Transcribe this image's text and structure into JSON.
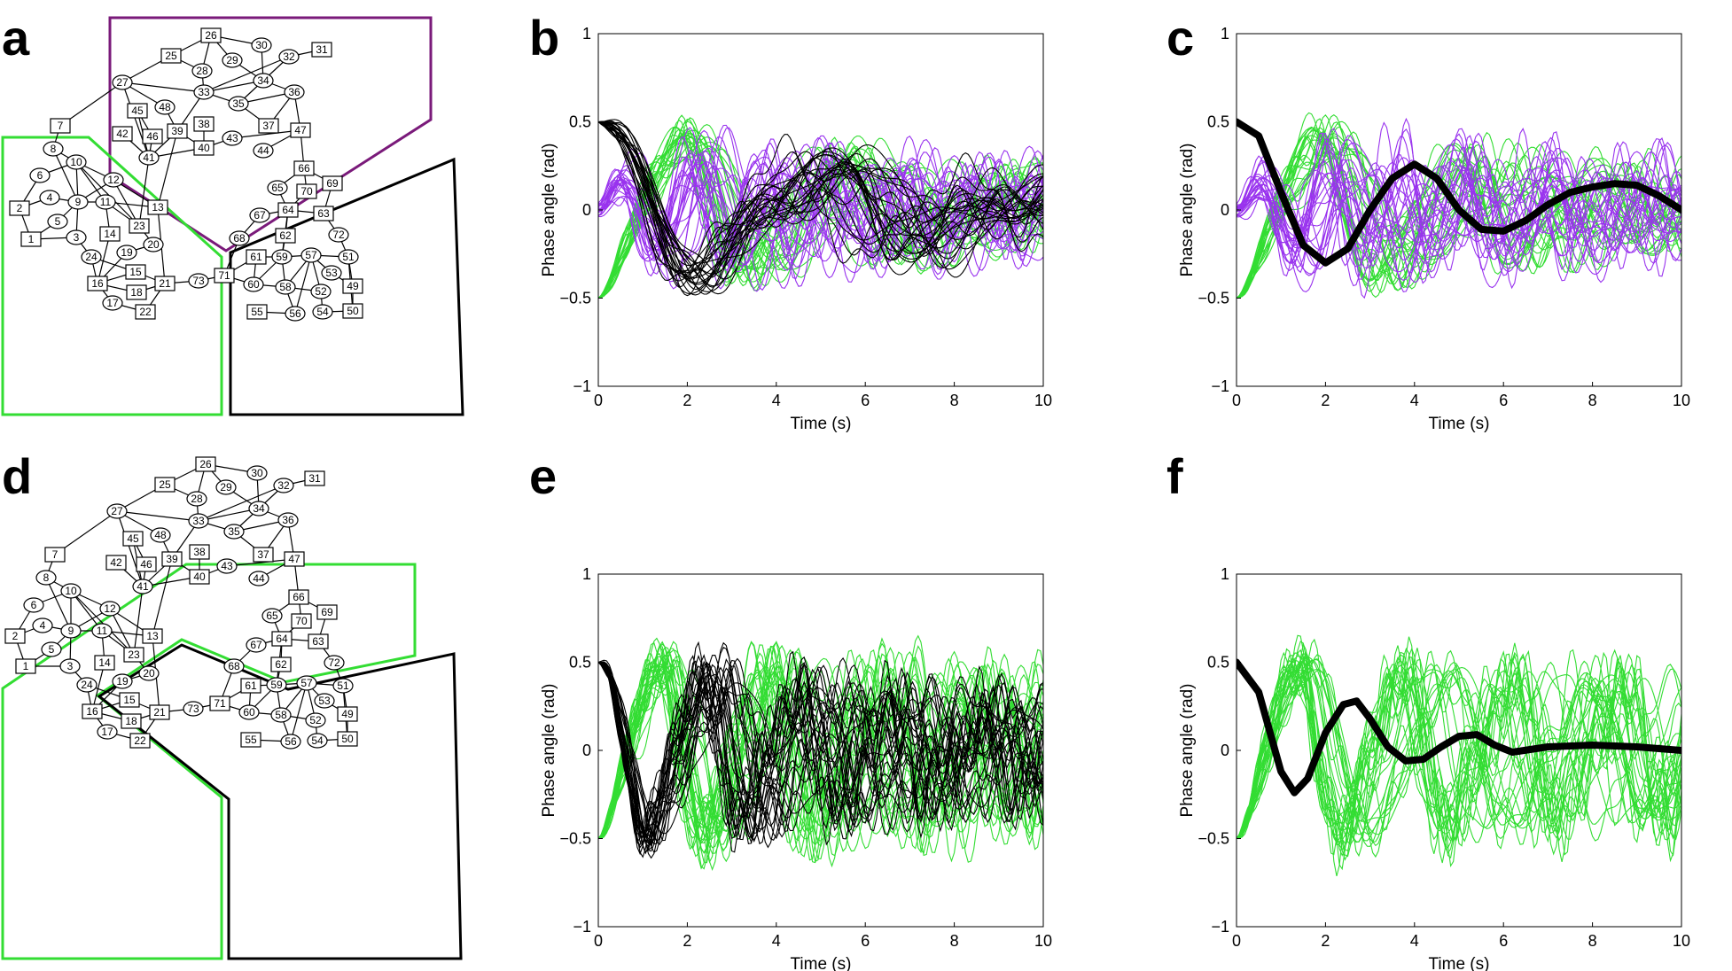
{
  "panel_labels": [
    "a",
    "b",
    "c",
    "d",
    "e",
    "f"
  ],
  "colors": {
    "group1": "#33dd33",
    "group2": "#9933ee",
    "group3": "#000000",
    "region_a_purple": "#7a1a7a"
  },
  "network": {
    "nodes": [
      {
        "id": "1",
        "shape": "square"
      },
      {
        "id": "2",
        "shape": "square"
      },
      {
        "id": "3",
        "shape": "circle"
      },
      {
        "id": "4",
        "shape": "circle"
      },
      {
        "id": "5",
        "shape": "circle"
      },
      {
        "id": "6",
        "shape": "circle"
      },
      {
        "id": "7",
        "shape": "square"
      },
      {
        "id": "8",
        "shape": "circle"
      },
      {
        "id": "9",
        "shape": "circle"
      },
      {
        "id": "10",
        "shape": "circle"
      },
      {
        "id": "11",
        "shape": "circle"
      },
      {
        "id": "12",
        "shape": "circle"
      },
      {
        "id": "13",
        "shape": "square"
      },
      {
        "id": "14",
        "shape": "square"
      },
      {
        "id": "15",
        "shape": "square"
      },
      {
        "id": "16",
        "shape": "square"
      },
      {
        "id": "17",
        "shape": "circle"
      },
      {
        "id": "18",
        "shape": "square"
      },
      {
        "id": "19",
        "shape": "circle"
      },
      {
        "id": "20",
        "shape": "circle"
      },
      {
        "id": "21",
        "shape": "square"
      },
      {
        "id": "22",
        "shape": "square"
      },
      {
        "id": "23",
        "shape": "square"
      },
      {
        "id": "24",
        "shape": "circle"
      },
      {
        "id": "25",
        "shape": "square"
      },
      {
        "id": "26",
        "shape": "square"
      },
      {
        "id": "27",
        "shape": "circle"
      },
      {
        "id": "28",
        "shape": "circle"
      },
      {
        "id": "29",
        "shape": "circle"
      },
      {
        "id": "30",
        "shape": "circle"
      },
      {
        "id": "31",
        "shape": "square"
      },
      {
        "id": "32",
        "shape": "circle"
      },
      {
        "id": "33",
        "shape": "circle"
      },
      {
        "id": "34",
        "shape": "circle"
      },
      {
        "id": "35",
        "shape": "circle"
      },
      {
        "id": "36",
        "shape": "circle"
      },
      {
        "id": "37",
        "shape": "square"
      },
      {
        "id": "38",
        "shape": "square"
      },
      {
        "id": "39",
        "shape": "square"
      },
      {
        "id": "40",
        "shape": "square"
      },
      {
        "id": "41",
        "shape": "circle"
      },
      {
        "id": "42",
        "shape": "square"
      },
      {
        "id": "43",
        "shape": "circle"
      },
      {
        "id": "44",
        "shape": "circle"
      },
      {
        "id": "45",
        "shape": "square"
      },
      {
        "id": "46",
        "shape": "square"
      },
      {
        "id": "47",
        "shape": "square"
      },
      {
        "id": "48",
        "shape": "circle"
      },
      {
        "id": "49",
        "shape": "square"
      },
      {
        "id": "50",
        "shape": "square"
      },
      {
        "id": "51",
        "shape": "circle"
      },
      {
        "id": "52",
        "shape": "circle"
      },
      {
        "id": "53",
        "shape": "circle"
      },
      {
        "id": "54",
        "shape": "circle"
      },
      {
        "id": "55",
        "shape": "square"
      },
      {
        "id": "56",
        "shape": "circle"
      },
      {
        "id": "57",
        "shape": "circle"
      },
      {
        "id": "58",
        "shape": "circle"
      },
      {
        "id": "59",
        "shape": "circle"
      },
      {
        "id": "60",
        "shape": "circle"
      },
      {
        "id": "61",
        "shape": "square"
      },
      {
        "id": "62",
        "shape": "square"
      },
      {
        "id": "63",
        "shape": "square"
      },
      {
        "id": "64",
        "shape": "square"
      },
      {
        "id": "65",
        "shape": "circle"
      },
      {
        "id": "66",
        "shape": "square"
      },
      {
        "id": "67",
        "shape": "circle"
      },
      {
        "id": "68",
        "shape": "circle"
      },
      {
        "id": "69",
        "shape": "square"
      },
      {
        "id": "70",
        "shape": "square"
      },
      {
        "id": "71",
        "shape": "square"
      },
      {
        "id": "72",
        "shape": "circle"
      },
      {
        "id": "73",
        "shape": "circle"
      }
    ],
    "edges": [
      [
        "2",
        "1"
      ],
      [
        "2",
        "4"
      ],
      [
        "2",
        "6"
      ],
      [
        "1",
        "3"
      ],
      [
        "1",
        "5"
      ],
      [
        "4",
        "9"
      ],
      [
        "5",
        "9"
      ],
      [
        "6",
        "10"
      ],
      [
        "8",
        "10"
      ],
      [
        "8",
        "7"
      ],
      [
        "8",
        "9"
      ],
      [
        "10",
        "9"
      ],
      [
        "10",
        "12"
      ],
      [
        "10",
        "11"
      ],
      [
        "10",
        "23"
      ],
      [
        "9",
        "11"
      ],
      [
        "9",
        "12"
      ],
      [
        "9",
        "3"
      ],
      [
        "12",
        "13"
      ],
      [
        "12",
        "23"
      ],
      [
        "11",
        "23"
      ],
      [
        "11",
        "14"
      ],
      [
        "11",
        "13"
      ],
      [
        "3",
        "24"
      ],
      [
        "24",
        "15"
      ],
      [
        "24",
        "16"
      ],
      [
        "14",
        "16"
      ],
      [
        "19",
        "16"
      ],
      [
        "19",
        "20"
      ],
      [
        "20",
        "23"
      ],
      [
        "16",
        "15"
      ],
      [
        "16",
        "18"
      ],
      [
        "16",
        "17"
      ],
      [
        "17",
        "22"
      ],
      [
        "18",
        "21"
      ],
      [
        "22",
        "21"
      ],
      [
        "15",
        "21"
      ],
      [
        "21",
        "13"
      ],
      [
        "21",
        "73"
      ],
      [
        "73",
        "71"
      ],
      [
        "23",
        "41"
      ],
      [
        "13",
        "39"
      ],
      [
        "7",
        "27"
      ],
      [
        "27",
        "25"
      ],
      [
        "27",
        "33"
      ],
      [
        "27",
        "41"
      ],
      [
        "27",
        "48"
      ],
      [
        "25",
        "28"
      ],
      [
        "25",
        "26"
      ],
      [
        "26",
        "28"
      ],
      [
        "26",
        "30"
      ],
      [
        "28",
        "33"
      ],
      [
        "29",
        "26"
      ],
      [
        "29",
        "34"
      ],
      [
        "30",
        "34"
      ],
      [
        "31",
        "32"
      ],
      [
        "32",
        "34"
      ],
      [
        "32",
        "33"
      ],
      [
        "33",
        "34"
      ],
      [
        "33",
        "35"
      ],
      [
        "34",
        "35"
      ],
      [
        "34",
        "36"
      ],
      [
        "35",
        "36"
      ],
      [
        "35",
        "37"
      ],
      [
        "36",
        "37"
      ],
      [
        "36",
        "47"
      ],
      [
        "33",
        "39"
      ],
      [
        "39",
        "48"
      ],
      [
        "39",
        "41"
      ],
      [
        "45",
        "46"
      ],
      [
        "45",
        "41"
      ],
      [
        "42",
        "41"
      ],
      [
        "46",
        "41"
      ],
      [
        "41",
        "40"
      ],
      [
        "38",
        "40"
      ],
      [
        "39",
        "40"
      ],
      [
        "40",
        "43"
      ],
      [
        "43",
        "47"
      ],
      [
        "44",
        "47"
      ],
      [
        "47",
        "66"
      ],
      [
        "66",
        "65"
      ],
      [
        "66",
        "70"
      ],
      [
        "66",
        "69"
      ],
      [
        "65",
        "64"
      ],
      [
        "70",
        "64"
      ],
      [
        "64",
        "63"
      ],
      [
        "69",
        "63"
      ],
      [
        "64",
        "67"
      ],
      [
        "64",
        "62"
      ],
      [
        "64",
        "59"
      ],
      [
        "63",
        "72"
      ],
      [
        "72",
        "51"
      ],
      [
        "51",
        "57"
      ],
      [
        "51",
        "49"
      ],
      [
        "51",
        "50"
      ],
      [
        "67",
        "68"
      ],
      [
        "68",
        "71"
      ],
      [
        "71",
        "61"
      ],
      [
        "71",
        "60"
      ],
      [
        "61",
        "59"
      ],
      [
        "61",
        "60"
      ],
      [
        "60",
        "59"
      ],
      [
        "60",
        "58"
      ],
      [
        "62",
        "59"
      ],
      [
        "59",
        "58"
      ],
      [
        "59",
        "57"
      ],
      [
        "57",
        "58"
      ],
      [
        "57",
        "53"
      ],
      [
        "57",
        "52"
      ],
      [
        "57",
        "56"
      ],
      [
        "53",
        "49"
      ],
      [
        "52",
        "54"
      ],
      [
        "54",
        "50"
      ],
      [
        "49",
        "50"
      ],
      [
        "58",
        "56"
      ],
      [
        "55",
        "56"
      ],
      [
        "58",
        "52"
      ]
    ]
  },
  "chart_data": [
    {
      "panel": "b",
      "type": "line",
      "xlabel": "Time (s)",
      "ylabel": "Phase angle (rad)",
      "xlim": [
        0,
        10
      ],
      "ylim": [
        -1,
        1
      ],
      "xticks": [
        0,
        2,
        4,
        6,
        8,
        10
      ],
      "yticks": [
        -1,
        -0.5,
        0,
        0.5,
        1
      ],
      "series": [
        {
          "group": "group1",
          "count": 24,
          "y0": -0.5,
          "freq": 0.54,
          "decay": 0.12,
          "amp": 0.55,
          "spread": 0.28
        },
        {
          "group": "group2",
          "count": 24,
          "y0": 0.0,
          "freq": 0.55,
          "decay": 0.06,
          "amp": 0.35,
          "spread": 0.35
        },
        {
          "group": "group3",
          "count": 24,
          "y0": 0.5,
          "freq": 0.42,
          "decay": 0.16,
          "amp": 0.75,
          "spread": 0.22
        }
      ],
      "mean_line": null
    },
    {
      "panel": "c",
      "type": "line",
      "xlabel": "Time (s)",
      "ylabel": "Phase angle (rad)",
      "xlim": [
        0,
        10
      ],
      "ylim": [
        -1,
        1
      ],
      "xticks": [
        0,
        2,
        4,
        6,
        8,
        10
      ],
      "yticks": [
        -1,
        -0.5,
        0,
        0.5,
        1
      ],
      "series": [
        {
          "group": "group1",
          "count": 24,
          "y0": -0.5,
          "freq": 0.54,
          "decay": 0.12,
          "amp": 0.55,
          "spread": 0.28
        },
        {
          "group": "group2",
          "count": 24,
          "y0": 0.0,
          "freq": 0.55,
          "decay": 0.06,
          "amp": 0.35,
          "spread": 0.35
        }
      ],
      "mean_line": {
        "x": [
          0,
          0.5,
          1,
          1.5,
          2,
          2.5,
          3,
          3.5,
          4,
          4.5,
          5,
          5.5,
          6,
          6.5,
          7,
          7.5,
          8,
          8.5,
          9,
          9.5,
          10
        ],
        "y": [
          0.5,
          0.42,
          0.1,
          -0.2,
          -0.3,
          -0.22,
          0.0,
          0.18,
          0.26,
          0.18,
          0.0,
          -0.11,
          -0.12,
          -0.06,
          0.03,
          0.1,
          0.13,
          0.15,
          0.14,
          0.08,
          0.0
        ]
      }
    },
    {
      "panel": "e",
      "type": "line",
      "xlabel": "Time (s)",
      "ylabel": "Phase angle (rad)",
      "xlim": [
        0,
        10
      ],
      "ylim": [
        -1,
        1
      ],
      "xticks": [
        0,
        2,
        4,
        6,
        8,
        10
      ],
      "yticks": [
        -1,
        -0.5,
        0,
        0.5,
        1
      ],
      "series": [
        {
          "group": "group1",
          "count": 30,
          "y0": -0.5,
          "freq": 0.75,
          "decay": 0.04,
          "amp": 0.6,
          "spread": 0.45
        },
        {
          "group": "group3",
          "count": 28,
          "y0": 0.5,
          "freq": 0.8,
          "decay": 0.1,
          "amp": 0.7,
          "spread": 0.4
        }
      ],
      "mean_line": null
    },
    {
      "panel": "f",
      "type": "line",
      "xlabel": "Time (s)",
      "ylabel": "Phase angle (rad)",
      "xlim": [
        0,
        10
      ],
      "ylim": [
        -1,
        1
      ],
      "xticks": [
        0,
        2,
        4,
        6,
        8,
        10
      ],
      "yticks": [
        -1,
        -0.5,
        0,
        0.5,
        1
      ],
      "series": [
        {
          "group": "group1",
          "count": 30,
          "y0": -0.5,
          "freq": 0.75,
          "decay": 0.04,
          "amp": 0.6,
          "spread": 0.45
        }
      ],
      "mean_line": {
        "x": [
          0,
          0.5,
          1,
          1.3,
          1.6,
          2,
          2.4,
          2.7,
          3,
          3.4,
          3.8,
          4.2,
          4.6,
          5,
          5.4,
          5.8,
          6.2,
          7,
          8,
          9,
          10
        ],
        "y": [
          0.5,
          0.33,
          -0.12,
          -0.24,
          -0.16,
          0.1,
          0.26,
          0.28,
          0.18,
          0.02,
          -0.06,
          -0.05,
          0.02,
          0.08,
          0.09,
          0.03,
          -0.01,
          0.02,
          0.03,
          0.02,
          0.0
        ]
      }
    }
  ]
}
